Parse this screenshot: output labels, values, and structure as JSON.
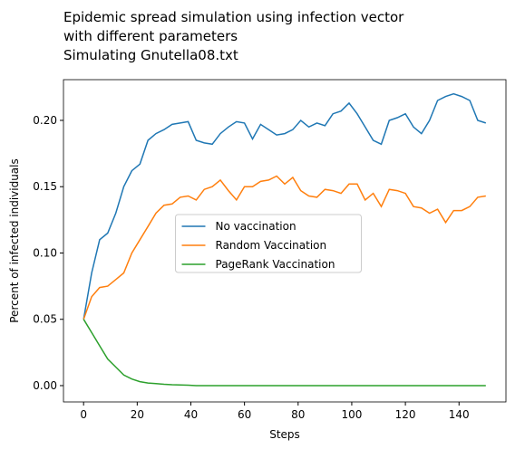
{
  "chart_data": {
    "type": "line",
    "title": [
      "Epidemic spread simulation using infection vector",
      " with different parameters",
      "Simulating Gnutella08.txt"
    ],
    "xlabel": "Steps",
    "ylabel": "Percent of infected individuals",
    "x": [
      0,
      3,
      6,
      9,
      12,
      15,
      18,
      21,
      24,
      27,
      30,
      33,
      36,
      39,
      42,
      45,
      48,
      51,
      54,
      57,
      60,
      63,
      66,
      69,
      72,
      75,
      78,
      81,
      84,
      87,
      90,
      93,
      96,
      99,
      102,
      105,
      108,
      111,
      114,
      117,
      120,
      123,
      126,
      129,
      132,
      135,
      138,
      141,
      144,
      147,
      150
    ],
    "series": [
      {
        "name": "No vaccination",
        "color": "#1f77b4",
        "values": [
          0.05,
          0.085,
          0.11,
          0.115,
          0.13,
          0.15,
          0.162,
          0.167,
          0.185,
          0.19,
          0.193,
          0.197,
          0.198,
          0.199,
          0.185,
          0.183,
          0.182,
          0.19,
          0.195,
          0.199,
          0.198,
          0.186,
          0.197,
          0.193,
          0.189,
          0.19,
          0.193,
          0.2,
          0.195,
          0.198,
          0.196,
          0.205,
          0.207,
          0.213,
          0.205,
          0.195,
          0.185,
          0.182,
          0.2,
          0.202,
          0.205,
          0.195,
          0.19,
          0.2,
          0.215,
          0.218,
          0.22,
          0.218,
          0.215,
          0.2,
          0.198
        ]
      },
      {
        "name": "Random Vaccination",
        "color": "#ff7f0e",
        "values": [
          0.05,
          0.067,
          0.074,
          0.075,
          0.08,
          0.085,
          0.1,
          0.11,
          0.12,
          0.13,
          0.136,
          0.137,
          0.142,
          0.143,
          0.14,
          0.148,
          0.15,
          0.155,
          0.147,
          0.14,
          0.15,
          0.15,
          0.154,
          0.155,
          0.158,
          0.152,
          0.157,
          0.147,
          0.143,
          0.142,
          0.148,
          0.147,
          0.145,
          0.152,
          0.152,
          0.14,
          0.145,
          0.135,
          0.148,
          0.147,
          0.145,
          0.135,
          0.134,
          0.13,
          0.133,
          0.123,
          0.132,
          0.132,
          0.135,
          0.142,
          0.143
        ]
      },
      {
        "name": "PageRank Vaccination",
        "color": "#2ca02c",
        "values": [
          0.05,
          0.04,
          0.03,
          0.02,
          0.014,
          0.008,
          0.005,
          0.003,
          0.002,
          0.0015,
          0.001,
          0.0007,
          0.0005,
          0.0003,
          0,
          0,
          0,
          0,
          0,
          0,
          0,
          0,
          0,
          0,
          0,
          0,
          0,
          0,
          0,
          0,
          0,
          0,
          0,
          0,
          0,
          0,
          0,
          0,
          0,
          0,
          0,
          0,
          0,
          0,
          0,
          0,
          0,
          0,
          0,
          0,
          0
        ]
      }
    ],
    "xlim": [
      -7.5,
      157.5
    ],
    "xticks": [
      0,
      20,
      40,
      60,
      80,
      100,
      120,
      140
    ],
    "ylim": [
      -0.0123,
      0.2307
    ],
    "yticks": [
      {
        "value": 0,
        "label": "0.00"
      },
      {
        "value": 0.05,
        "label": "0.05"
      },
      {
        "value": 0.1,
        "label": "0.10"
      },
      {
        "value": 0.15,
        "label": "0.15"
      },
      {
        "value": 0.2,
        "label": "0.20"
      }
    ],
    "legend": "center"
  }
}
